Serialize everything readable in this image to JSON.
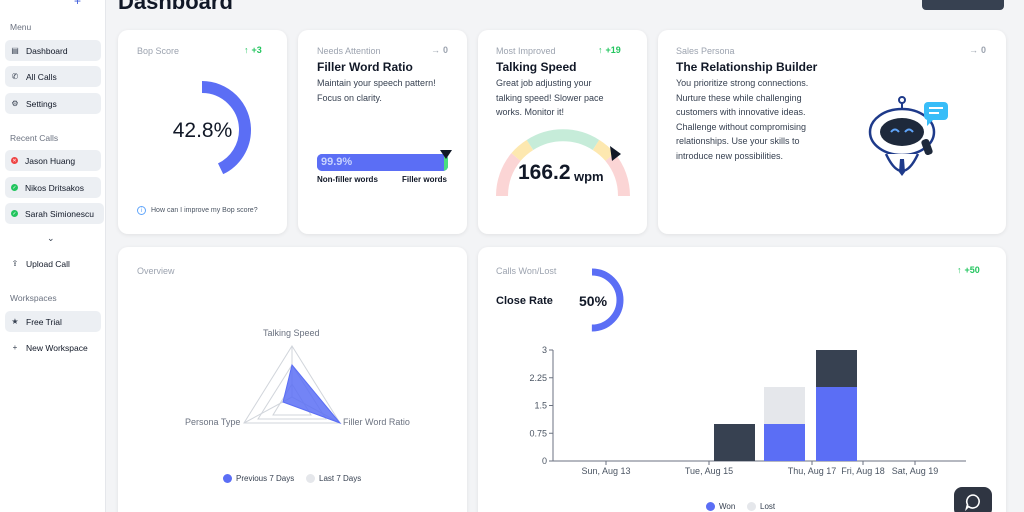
{
  "header": {
    "title": "Dashboard"
  },
  "sidebar": {
    "menu_heading": "Menu",
    "menu_items": [
      {
        "label": "Dashboard",
        "icon": "grid-icon",
        "active": true
      },
      {
        "label": "All Calls",
        "icon": "phone-icon",
        "active": true
      },
      {
        "label": "Settings",
        "icon": "gear-icon",
        "active": true
      }
    ],
    "recent_heading": "Recent Calls",
    "recent_calls": [
      {
        "label": "Jason Huang",
        "status": "lost"
      },
      {
        "label": "Nikos Dritsakos",
        "status": "won"
      },
      {
        "label": "Sarah Simionescu",
        "status": "won"
      }
    ],
    "upload_label": "Upload Call",
    "workspaces_heading": "Workspaces",
    "workspace_items": [
      {
        "label": "Free Trial",
        "icon": "star-icon",
        "active": true
      },
      {
        "label": "New Workspace",
        "icon": "plus-icon",
        "active": false
      }
    ]
  },
  "bop_score": {
    "label": "Bop Score",
    "delta": "+3",
    "value": "42.8%",
    "percent": 42.8,
    "help_text": "How can I improve my Bop score?"
  },
  "filler": {
    "label": "Needs Attention",
    "delta": "0",
    "title": "Filler Word Ratio",
    "desc_lines": [
      "Maintain your speech pattern!",
      "Focus on clarity."
    ],
    "bar_value": "99.9%",
    "bar_percent": 99.9,
    "left_label": "Non-filler words",
    "right_label": "Filler words"
  },
  "talking_speed": {
    "label": "Most Improved",
    "delta": "+19",
    "title": "Talking Speed",
    "desc_lines": [
      "Great job adjusting your",
      "talking speed! Slower pace",
      "works. Monitor it!"
    ],
    "value": "166.2",
    "unit": "wpm"
  },
  "persona": {
    "label": "Sales Persona",
    "delta": "0",
    "title": "The Relationship Builder",
    "desc_lines": [
      "You prioritize strong connections.",
      "Nurture these while challenging",
      "customers with innovative ideas.",
      "Challenge without compromising",
      "relationships. Use your skills to",
      "introduce new possibilities."
    ]
  },
  "overview": {
    "label": "Overview",
    "axes": [
      "Talking Speed",
      "Filler Word Ratio",
      "Persona Type"
    ],
    "legend": [
      "Previous 7 Days",
      "Last 7 Days"
    ]
  },
  "calls": {
    "label": "Calls Won/Lost",
    "delta": "+50",
    "close_rate_label": "Close Rate",
    "close_rate_value": "50%",
    "close_rate_percent": 50,
    "legend": [
      "Won",
      "Lost"
    ]
  },
  "colors": {
    "accent": "#5b6ef5",
    "dark_bar": "#374151",
    "lost_bar": "#e5e7eb",
    "green": "#22c55e"
  },
  "chart_data": {
    "type": "bar",
    "stacked": true,
    "x_ticks": [
      "Sun, Aug 13",
      "Tue, Aug 15",
      "Thu, Aug 17",
      "Fri, Aug 18",
      "Sat, Aug 19"
    ],
    "y_ticks": [
      "0",
      "0.75",
      "1.5",
      "2.25",
      "3"
    ],
    "ylim": [
      0,
      3
    ],
    "bars": [
      {
        "date": "Aug 16",
        "won": 0,
        "lost": 0,
        "total": 1
      },
      {
        "date": "Aug 17",
        "won": 1,
        "lost": 1
      },
      {
        "date": "Aug 18",
        "won": 2,
        "lost": 0,
        "total": 3
      }
    ],
    "legend": [
      "Won",
      "Lost"
    ]
  }
}
